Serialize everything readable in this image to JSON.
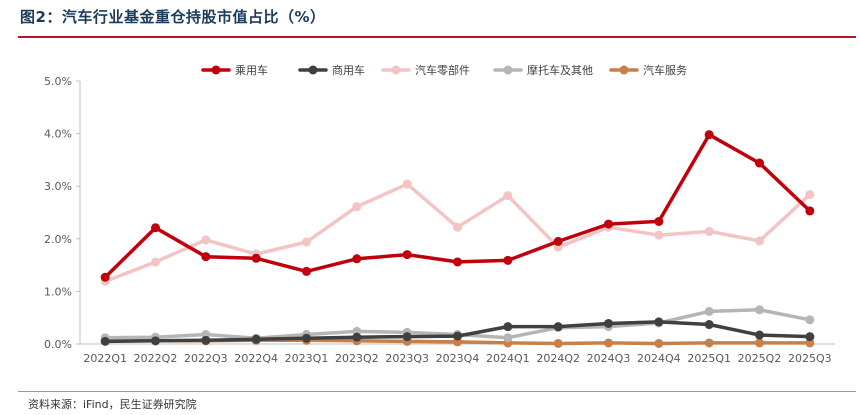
{
  "title": "图2：汽车行业基金重仓持股市值占比（%）",
  "source": "资料来源：iFind，民生证券研究院",
  "chart_data": {
    "type": "line",
    "categories": [
      "2022Q1",
      "2022Q2",
      "2022Q3",
      "2022Q4",
      "2023Q1",
      "2023Q2",
      "2023Q3",
      "2023Q4",
      "2024Q1",
      "2024Q2",
      "2024Q3",
      "2024Q4",
      "2025Q1",
      "2025Q2",
      "2025Q3"
    ],
    "ylim": [
      0,
      5
    ],
    "yticks": [
      "0.0%",
      "1.0%",
      "2.0%",
      "3.0%",
      "4.0%",
      "5.0%"
    ],
    "grid": false,
    "legend_position": "top",
    "series": [
      {
        "name": "乘用车",
        "color": "#c0000b",
        "values": [
          1.27,
          2.21,
          1.66,
          1.63,
          1.38,
          1.62,
          1.7,
          1.56,
          1.59,
          1.95,
          2.28,
          2.33,
          3.98,
          3.44,
          2.53
        ]
      },
      {
        "name": "商用车",
        "color": "#404040",
        "values": [
          0.05,
          0.06,
          0.07,
          0.09,
          0.11,
          0.13,
          0.14,
          0.15,
          0.33,
          0.33,
          0.39,
          0.42,
          0.37,
          0.17,
          0.14
        ]
      },
      {
        "name": "汽车零部件",
        "color": "#f2c4c4",
        "values": [
          1.19,
          1.56,
          1.98,
          1.71,
          1.94,
          2.61,
          3.04,
          2.22,
          2.82,
          1.84,
          2.22,
          2.07,
          2.14,
          1.96,
          2.84
        ]
      },
      {
        "name": "摩托车及其他",
        "color": "#b5b5b5",
        "values": [
          0.12,
          0.13,
          0.18,
          0.11,
          0.18,
          0.24,
          0.22,
          0.18,
          0.12,
          0.31,
          0.33,
          0.4,
          0.62,
          0.65,
          0.46
        ]
      },
      {
        "name": "汽车服务",
        "color": "#c8804a",
        "values": [
          0.08,
          0.06,
          0.06,
          0.07,
          0.07,
          0.06,
          0.05,
          0.04,
          0.02,
          0.01,
          0.02,
          0.01,
          0.02,
          0.02,
          0.02
        ]
      }
    ]
  }
}
